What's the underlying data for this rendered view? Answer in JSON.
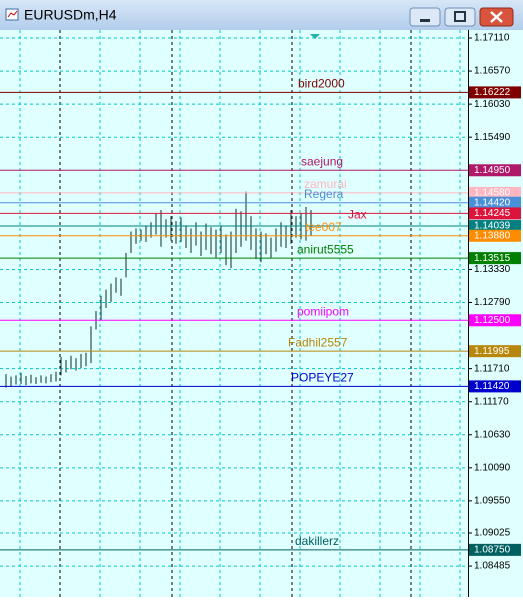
{
  "window": {
    "title": "EURUSDm,H4"
  },
  "chart_data": {
    "type": "price_bars",
    "ylim": [
      1.0798,
      1.17241
    ],
    "yticks": [
      {
        "value": 1.1711,
        "label": "1.17110"
      },
      {
        "value": 1.1657,
        "label": "1.16570"
      },
      {
        "value": 1.1603,
        "label": "1.16030"
      },
      {
        "value": 1.1549,
        "label": "1.15490"
      },
      {
        "value": 1.1333,
        "label": "1.13330"
      },
      {
        "value": 1.1279,
        "label": "1.12790"
      },
      {
        "value": 1.1171,
        "label": "1.11710"
      },
      {
        "value": 1.1117,
        "label": "1.11170"
      },
      {
        "value": 1.1063,
        "label": "1.10630"
      },
      {
        "value": 1.1009,
        "label": "1.10090"
      },
      {
        "value": 1.0955,
        "label": "1.09550"
      },
      {
        "value": 1.09025,
        "label": "1.09025"
      },
      {
        "value": 1.08485,
        "label": "1.08485"
      }
    ],
    "bar_color": "#2f4f4f",
    "highs": [
      1.1162,
      1.1158,
      1.116,
      1.1164,
      1.1159,
      1.1161,
      1.1157,
      1.116,
      1.1158,
      1.1162,
      1.1166,
      1.119,
      1.1185,
      1.1192,
      1.1188,
      1.1195,
      1.1197,
      1.124,
      1.1265,
      1.129,
      1.13,
      1.131,
      1.132,
      1.1318,
      1.136,
      1.1395,
      1.14,
      1.1398,
      1.1405,
      1.141,
      1.1425,
      1.143,
      1.1415,
      1.142,
      1.1412,
      1.1418,
      1.1405,
      1.14,
      1.141,
      1.1395,
      1.1408,
      1.1402,
      1.1398,
      1.1405,
      1.139,
      1.1395,
      1.1432,
      1.1428,
      1.146,
      1.142,
      1.14,
      1.1395,
      1.1392,
      1.1385,
      1.14,
      1.141,
      1.1405,
      1.143,
      1.142,
      1.1425,
      1.1435,
      1.143
    ],
    "lows": [
      1.114,
      1.1142,
      1.1145,
      1.1146,
      1.1144,
      1.1147,
      1.1146,
      1.1148,
      1.1147,
      1.1149,
      1.115,
      1.116,
      1.1165,
      1.117,
      1.1168,
      1.1172,
      1.1175,
      1.118,
      1.1235,
      1.125,
      1.127,
      1.128,
      1.1295,
      1.129,
      1.132,
      1.136,
      1.1375,
      1.138,
      1.1378,
      1.1385,
      1.139,
      1.137,
      1.1385,
      1.138,
      1.1375,
      1.1378,
      1.1368,
      1.136,
      1.1372,
      1.1355,
      1.1365,
      1.1358,
      1.1352,
      1.136,
      1.134,
      1.1335,
      1.136,
      1.137,
      1.138,
      1.1365,
      1.135,
      1.1345,
      1.1358,
      1.1352,
      1.1362,
      1.137,
      1.1368,
      1.1375,
      1.1385,
      1.1382,
      1.138,
      1.1388
    ],
    "levels": [
      {
        "name": "zamurai",
        "price": {
          "value": 1.1458,
          "label": "1.14580"
        },
        "color": "#ffb6c1"
      },
      {
        "name": "bird2000",
        "price": {
          "value": 1.16222,
          "label": "1.16222"
        },
        "color": "#800000"
      },
      {
        "name": "saejung",
        "price": {
          "value": 1.1495,
          "label": "1.14950"
        },
        "color": "#b0186a"
      },
      {
        "name": "Regera",
        "price": {
          "value": 1.1442,
          "label": "1.14420"
        },
        "color": "#4a90d9"
      },
      {
        "name": "Jax",
        "price": {
          "value": 1.14245,
          "label": "1.14245"
        },
        "color": "#dc143c"
      },
      {
        "price": {
          "value": 1.14039,
          "label": "1.14039"
        },
        "color": "#008080"
      },
      {
        "name": "tee007",
        "price": {
          "value": 1.1388,
          "label": "1.13880"
        },
        "color": "#ff8c00"
      },
      {
        "name": "anirut5555",
        "price": {
          "value": 1.13515,
          "label": "1.13515"
        },
        "color": "#008000"
      },
      {
        "name": "pomiipom",
        "price": {
          "value": 1.125,
          "label": "1.12500"
        },
        "color": "#ff00ff"
      },
      {
        "name": "Fadhil2557",
        "price": {
          "value": 1.11995,
          "label": "1.11995"
        },
        "color": "#b8860b"
      },
      {
        "name": "POPEYE27",
        "price": {
          "value": 1.1142,
          "label": "1.11420"
        },
        "color": "#0000cd"
      },
      {
        "name": "dakillerz",
        "price": {
          "value": 1.0875,
          "label": "1.08750"
        },
        "color": "#006060"
      }
    ]
  }
}
